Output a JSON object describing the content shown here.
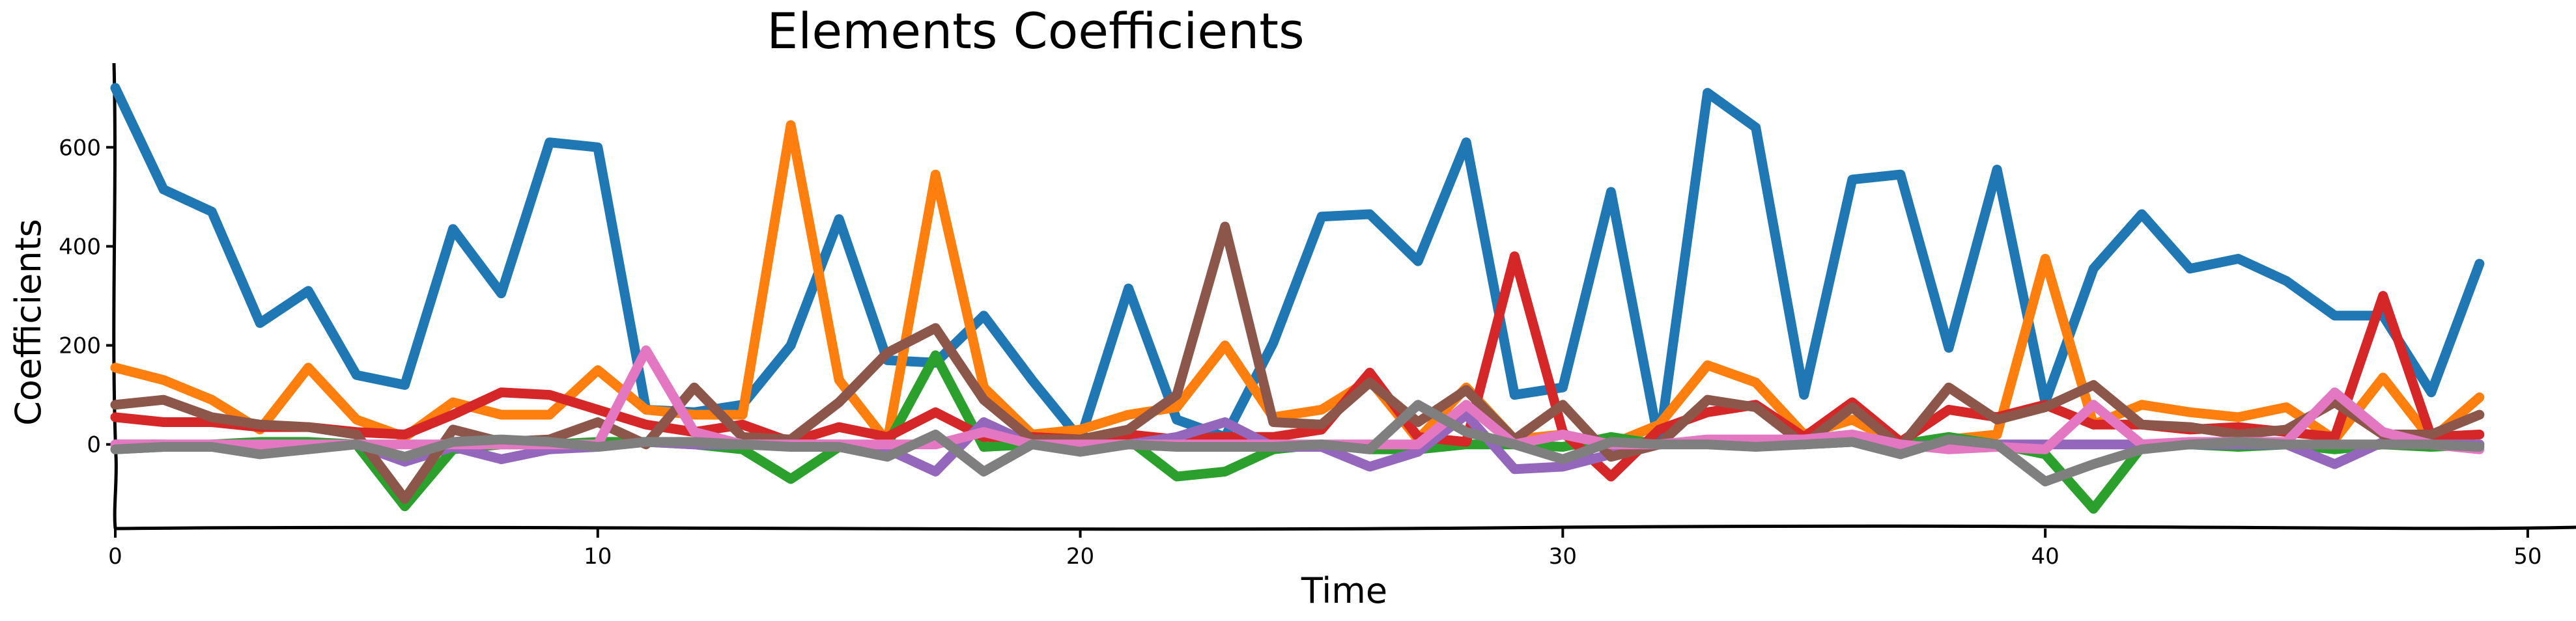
{
  "chart_data": {
    "type": "line",
    "title": "Elements Coefficients",
    "xlabel": "Time",
    "ylabel": "Coefficients",
    "xlim": [
      0,
      51
    ],
    "ylim": [
      -170,
      770
    ],
    "xticks": [
      0,
      10,
      20,
      30,
      40,
      50
    ],
    "yticks": [
      0,
      200,
      400,
      600
    ],
    "grid": false,
    "legend": "none",
    "x": [
      0,
      1,
      2,
      3,
      4,
      5,
      6,
      7,
      8,
      9,
      10,
      11,
      12,
      13,
      14,
      15,
      16,
      17,
      18,
      19,
      20,
      21,
      22,
      23,
      24,
      25,
      26,
      27,
      28,
      29,
      30,
      31,
      32,
      33,
      34,
      35,
      36,
      37,
      38,
      39,
      40,
      41,
      42,
      43,
      44,
      45,
      46,
      47,
      48,
      49
    ],
    "series": [
      {
        "color": "#1f77b4",
        "values": [
          720,
          515,
          470,
          245,
          310,
          140,
          120,
          435,
          305,
          610,
          600,
          70,
          65,
          80,
          200,
          455,
          170,
          165,
          260,
          130,
          10,
          315,
          50,
          15,
          205,
          460,
          465,
          370,
          610,
          100,
          115,
          510,
          0,
          710,
          640,
          100,
          535,
          545,
          195,
          555,
          85,
          355,
          465,
          355,
          375,
          330,
          260,
          260,
          105,
          365
        ]
      },
      {
        "color": "#ff7f0e",
        "values": [
          155,
          130,
          90,
          30,
          155,
          50,
          15,
          85,
          60,
          60,
          150,
          70,
          60,
          60,
          645,
          130,
          5,
          545,
          115,
          20,
          30,
          60,
          75,
          200,
          55,
          70,
          130,
          10,
          115,
          10,
          20,
          0,
          40,
          160,
          125,
          20,
          50,
          0,
          10,
          20,
          375,
          40,
          80,
          65,
          55,
          75,
          10,
          135,
          10,
          95
        ]
      },
      {
        "color": "#2ca02c",
        "values": [
          -10,
          -5,
          0,
          5,
          5,
          0,
          -125,
          -10,
          0,
          0,
          5,
          5,
          0,
          -10,
          -70,
          -5,
          0,
          180,
          -5,
          0,
          0,
          10,
          -65,
          -55,
          -10,
          0,
          -10,
          -10,
          0,
          0,
          -5,
          15,
          0,
          5,
          5,
          0,
          5,
          0,
          15,
          0,
          -20,
          -130,
          -5,
          0,
          -5,
          0,
          -10,
          0,
          -5,
          0
        ]
      },
      {
        "color": "#d62728",
        "values": [
          55,
          45,
          45,
          35,
          35,
          25,
          20,
          60,
          105,
          100,
          70,
          40,
          25,
          40,
          5,
          35,
          15,
          65,
          15,
          15,
          10,
          20,
          10,
          15,
          15,
          30,
          145,
          15,
          5,
          380,
          25,
          -65,
          30,
          65,
          80,
          15,
          85,
          5,
          70,
          55,
          80,
          40,
          40,
          30,
          35,
          25,
          15,
          300,
          15,
          20
        ]
      },
      {
        "color": "#9467bd",
        "values": [
          0,
          0,
          -5,
          0,
          0,
          0,
          -35,
          -5,
          -30,
          -10,
          -5,
          5,
          0,
          0,
          0,
          0,
          -10,
          -55,
          45,
          0,
          0,
          0,
          15,
          45,
          -5,
          -5,
          -45,
          -15,
          60,
          -50,
          -45,
          -20,
          0,
          5,
          0,
          0,
          5,
          -5,
          0,
          0,
          0,
          0,
          0,
          0,
          0,
          0,
          -40,
          5,
          0,
          0
        ]
      },
      {
        "color": "#8c564b",
        "values": [
          80,
          90,
          55,
          40,
          35,
          20,
          -110,
          30,
          5,
          10,
          45,
          0,
          115,
          15,
          10,
          85,
          185,
          235,
          90,
          10,
          10,
          30,
          100,
          440,
          45,
          40,
          125,
          45,
          110,
          10,
          80,
          -25,
          0,
          90,
          75,
          0,
          75,
          -5,
          115,
          50,
          75,
          120,
          40,
          35,
          20,
          30,
          85,
          20,
          20,
          60
        ]
      },
      {
        "color": "#e377c2",
        "values": [
          0,
          0,
          0,
          0,
          0,
          0,
          0,
          0,
          0,
          0,
          0,
          190,
          25,
          0,
          0,
          0,
          0,
          0,
          25,
          0,
          0,
          0,
          0,
          0,
          0,
          0,
          0,
          0,
          80,
          0,
          20,
          0,
          0,
          10,
          10,
          10,
          20,
          0,
          -10,
          -5,
          -10,
          80,
          0,
          5,
          5,
          5,
          105,
          25,
          0,
          -10
        ]
      },
      {
        "color": "#7f7f7f",
        "values": [
          -10,
          -5,
          -5,
          -20,
          -10,
          0,
          -25,
          5,
          10,
          5,
          -5,
          5,
          5,
          0,
          -5,
          -5,
          -25,
          20,
          -55,
          0,
          -15,
          0,
          -5,
          -5,
          -5,
          0,
          -10,
          80,
          25,
          0,
          -30,
          5,
          0,
          0,
          -5,
          0,
          5,
          -20,
          10,
          0,
          -75,
          -40,
          -10,
          0,
          5,
          0,
          0,
          0,
          0,
          -5
        ]
      }
    ]
  }
}
